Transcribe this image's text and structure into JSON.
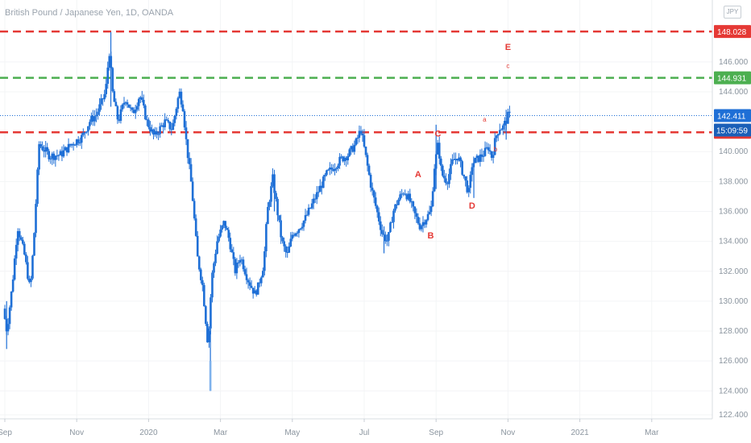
{
  "chart_title": "British Pound / Japanese Yen, 1D, OANDA",
  "currency_badge": "JPY",
  "colors": {
    "candle": "#1e6fd6",
    "resistance": "#e53935",
    "target": "#4caf50",
    "price": "#1e6fd6",
    "label": "#e53935"
  },
  "chart_data": {
    "type": "candlestick",
    "symbol": "GBPJPY",
    "timeframe": "1D",
    "ylim": [
      122.4,
      149.6
    ],
    "y_ticks": [
      122.4,
      124.0,
      126.0,
      128.0,
      130.0,
      132.0,
      134.0,
      136.0,
      138.0,
      140.0,
      144.0,
      146.0
    ],
    "y_tick_labels": [
      "122.400",
      "124.000",
      "126.000",
      "128.000",
      "130.000",
      "132.000",
      "134.000",
      "136.000",
      "138.000",
      "140.000",
      "144.000",
      "146.000"
    ],
    "x_labels": [
      "Sep",
      "Nov",
      "2020",
      "Mar",
      "May",
      "Jul",
      "Sep",
      "Nov",
      "2021",
      "Mar"
    ],
    "x_label_month_offsets": [
      0,
      2,
      4,
      6,
      8,
      10,
      12,
      14,
      16,
      18
    ],
    "x_month_range": [
      0,
      20
    ],
    "price_path": [
      {
        "m": 0.0,
        "p": 129.5
      },
      {
        "m": 0.1,
        "p": 128.0
      },
      {
        "m": 0.25,
        "p": 131.0
      },
      {
        "m": 0.4,
        "p": 135.0
      },
      {
        "m": 0.6,
        "p": 133.0
      },
      {
        "m": 0.75,
        "p": 130.7
      },
      {
        "m": 0.85,
        "p": 134.0
      },
      {
        "m": 1.0,
        "p": 140.5
      },
      {
        "m": 1.3,
        "p": 139.7
      },
      {
        "m": 1.6,
        "p": 139.8
      },
      {
        "m": 1.9,
        "p": 140.5
      },
      {
        "m": 2.2,
        "p": 141.0
      },
      {
        "m": 2.4,
        "p": 142.0
      },
      {
        "m": 2.6,
        "p": 142.5
      },
      {
        "m": 2.85,
        "p": 144.0
      },
      {
        "m": 2.95,
        "p": 146.8
      },
      {
        "m": 3.05,
        "p": 143.8
      },
      {
        "m": 3.2,
        "p": 142.0
      },
      {
        "m": 3.4,
        "p": 143.6
      },
      {
        "m": 3.6,
        "p": 142.5
      },
      {
        "m": 3.8,
        "p": 143.8
      },
      {
        "m": 4.0,
        "p": 142.0
      },
      {
        "m": 4.2,
        "p": 141.0
      },
      {
        "m": 4.5,
        "p": 142.0
      },
      {
        "m": 4.7,
        "p": 141.5
      },
      {
        "m": 4.9,
        "p": 144.0
      },
      {
        "m": 5.0,
        "p": 143.0
      },
      {
        "m": 5.1,
        "p": 140.5
      },
      {
        "m": 5.25,
        "p": 137.5
      },
      {
        "m": 5.4,
        "p": 133.0
      },
      {
        "m": 5.55,
        "p": 131.0
      },
      {
        "m": 5.7,
        "p": 127.0
      },
      {
        "m": 5.8,
        "p": 131.5
      },
      {
        "m": 5.95,
        "p": 134.0
      },
      {
        "m": 6.15,
        "p": 135.3
      },
      {
        "m": 6.3,
        "p": 134.0
      },
      {
        "m": 6.45,
        "p": 132.0
      },
      {
        "m": 6.6,
        "p": 133.0
      },
      {
        "m": 6.8,
        "p": 131.5
      },
      {
        "m": 7.0,
        "p": 130.5
      },
      {
        "m": 7.1,
        "p": 131.0
      },
      {
        "m": 7.25,
        "p": 132.5
      },
      {
        "m": 7.35,
        "p": 136.0
      },
      {
        "m": 7.5,
        "p": 138.2
      },
      {
        "m": 7.6,
        "p": 136.5
      },
      {
        "m": 7.75,
        "p": 134.0
      },
      {
        "m": 7.9,
        "p": 133.0
      },
      {
        "m": 8.05,
        "p": 134.5
      },
      {
        "m": 8.2,
        "p": 134.8
      },
      {
        "m": 8.4,
        "p": 135.5
      },
      {
        "m": 8.6,
        "p": 136.5
      },
      {
        "m": 8.8,
        "p": 137.5
      },
      {
        "m": 9.0,
        "p": 138.5
      },
      {
        "m": 9.2,
        "p": 139.0
      },
      {
        "m": 9.4,
        "p": 139.5
      },
      {
        "m": 9.6,
        "p": 139.8
      },
      {
        "m": 9.8,
        "p": 140.5
      },
      {
        "m": 9.95,
        "p": 141.5
      },
      {
        "m": 10.1,
        "p": 139.5
      },
      {
        "m": 10.25,
        "p": 137.5
      },
      {
        "m": 10.4,
        "p": 136.0
      },
      {
        "m": 10.55,
        "p": 134.5
      },
      {
        "m": 10.7,
        "p": 134.0
      },
      {
        "m": 10.85,
        "p": 136.0
      },
      {
        "m": 11.0,
        "p": 136.8
      },
      {
        "m": 11.15,
        "p": 137.4
      },
      {
        "m": 11.3,
        "p": 136.8
      },
      {
        "m": 11.45,
        "p": 135.8
      },
      {
        "m": 11.6,
        "p": 135.0
      },
      {
        "m": 11.75,
        "p": 135.5
      },
      {
        "m": 11.9,
        "p": 136.0
      },
      {
        "m": 12.0,
        "p": 139.0
      },
      {
        "m": 12.1,
        "p": 140.5
      },
      {
        "m": 12.2,
        "p": 138.5
      },
      {
        "m": 12.35,
        "p": 138.0
      },
      {
        "m": 12.5,
        "p": 139.3
      },
      {
        "m": 12.65,
        "p": 139.7
      },
      {
        "m": 12.8,
        "p": 138.5
      },
      {
        "m": 12.95,
        "p": 137.2
      },
      {
        "m": 13.05,
        "p": 139.2
      },
      {
        "m": 13.2,
        "p": 139.5
      },
      {
        "m": 13.35,
        "p": 139.8
      },
      {
        "m": 13.5,
        "p": 140.3
      },
      {
        "m": 13.6,
        "p": 139.6
      },
      {
        "m": 13.7,
        "p": 140.9
      },
      {
        "m": 13.8,
        "p": 141.6
      },
      {
        "m": 13.9,
        "p": 141.6
      },
      {
        "m": 14.0,
        "p": 142.1
      },
      {
        "m": 14.05,
        "p": 142.4
      }
    ],
    "spikes": [
      {
        "m": 0.05,
        "low": 126.8,
        "high": 130.0
      },
      {
        "m": 2.95,
        "low": 143.0,
        "high": 148.0
      },
      {
        "m": 5.72,
        "low": 124.0,
        "high": 128.0
      },
      {
        "m": 7.5,
        "low": 136.0,
        "high": 138.5
      },
      {
        "m": 10.55,
        "low": 133.2,
        "high": 135.0
      },
      {
        "m": 12.0,
        "low": 137.5,
        "high": 141.8
      },
      {
        "m": 13.05,
        "low": 136.9,
        "high": 139.5
      },
      {
        "m": 13.95,
        "low": 140.8,
        "high": 142.8
      }
    ],
    "levels": [
      {
        "name": "resistance-upper",
        "value": 148.028,
        "label": "148.028",
        "style": "dashed",
        "color": "#e53935"
      },
      {
        "name": "target",
        "value": 144.931,
        "label": "144.931",
        "style": "dashed",
        "color": "#4caf50"
      },
      {
        "name": "current-price",
        "value": 142.411,
        "label": "142.411",
        "style": "dotted",
        "color": "#1e6fd6"
      },
      {
        "name": "resistance-lower",
        "value": 141.293,
        "label": "141.293",
        "style": "dashed",
        "color": "#e53935"
      }
    ],
    "countdown": "15:09:59",
    "wave_labels": [
      {
        "text": "A",
        "m": 11.5,
        "p": 138.3,
        "size": "large"
      },
      {
        "text": "B",
        "m": 11.85,
        "p": 134.2,
        "size": "large"
      },
      {
        "text": "C",
        "m": 12.05,
        "p": 141.0,
        "size": "large"
      },
      {
        "text": "D",
        "m": 13.0,
        "p": 136.2,
        "size": "large"
      },
      {
        "text": "E",
        "m": 14.0,
        "p": 146.8,
        "size": "large"
      },
      {
        "text": "a",
        "m": 13.35,
        "p": 142.0,
        "size": "small"
      },
      {
        "text": "b",
        "m": 13.65,
        "p": 140.0,
        "size": "small"
      },
      {
        "text": "c",
        "m": 14.0,
        "p": 145.6,
        "size": "small"
      }
    ]
  }
}
